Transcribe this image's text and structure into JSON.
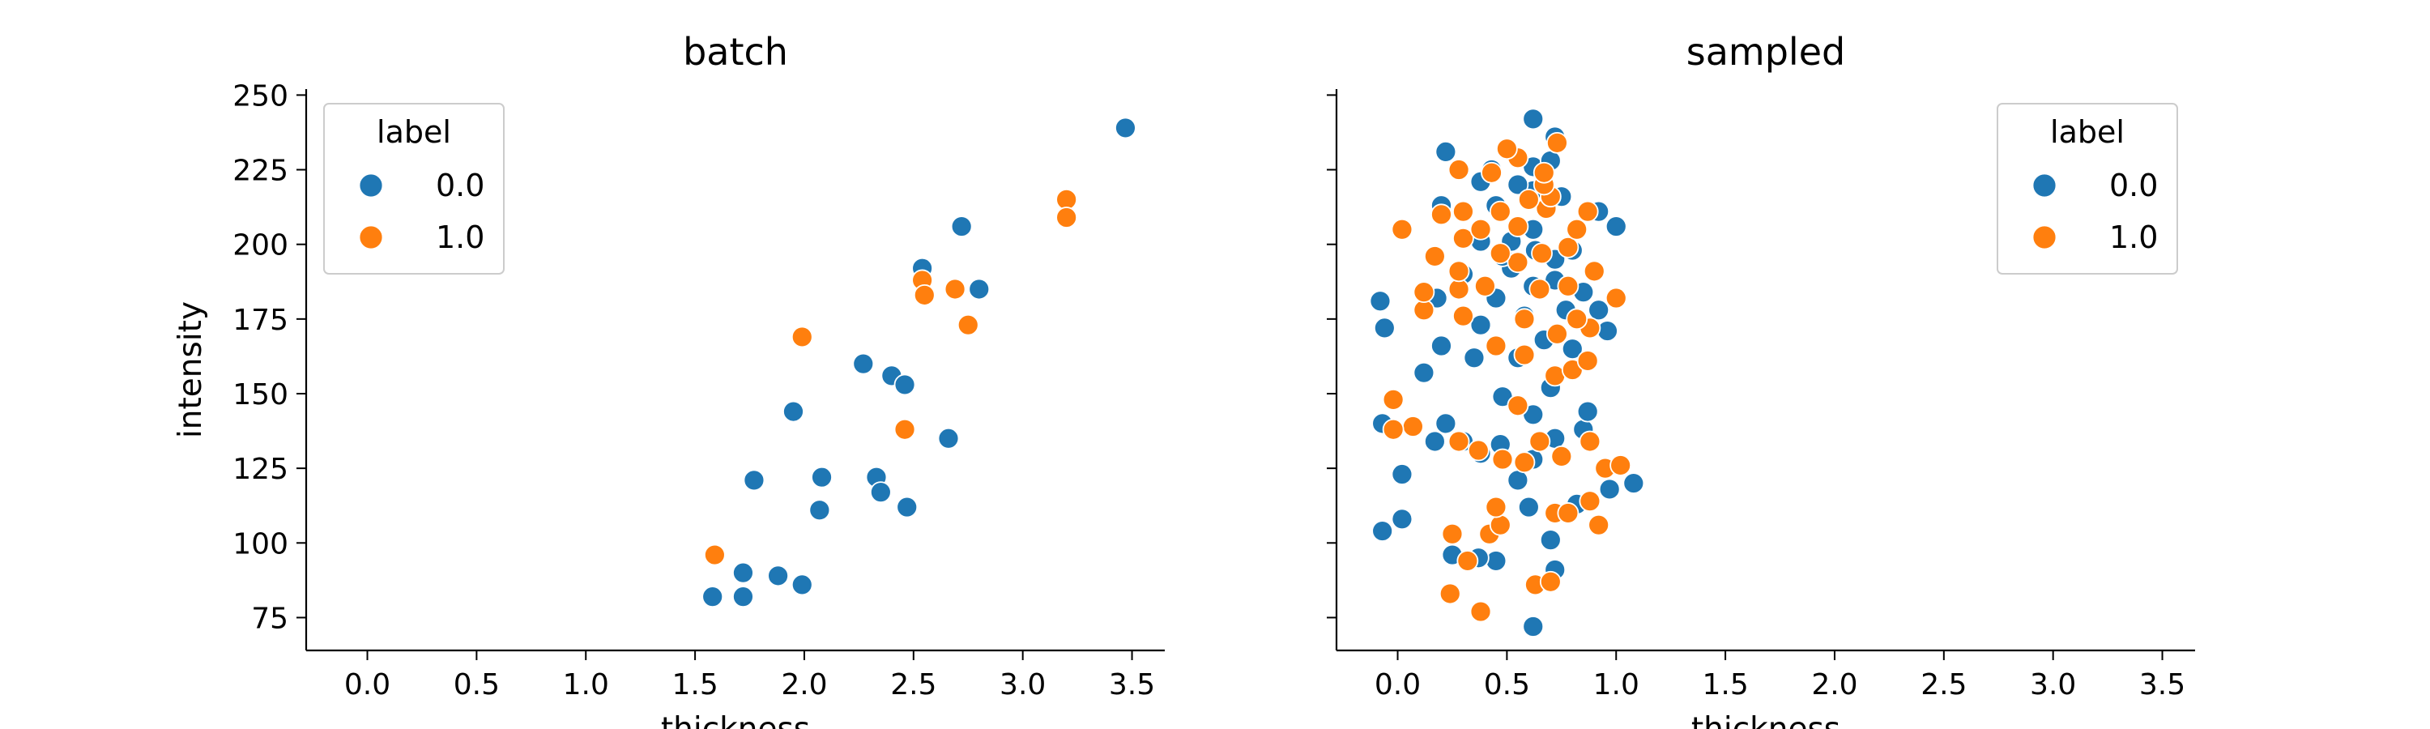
{
  "colors": {
    "label_0": "#1f77b4",
    "label_1": "#ff7f0e"
  },
  "chart_data": [
    {
      "type": "scatter",
      "title": "batch",
      "xlabel": "thickness",
      "ylabel": "intensity",
      "xlim": [
        -0.28,
        3.65
      ],
      "ylim": [
        64,
        252
      ],
      "xticks": [
        "0.0",
        "0.5",
        "1.0",
        "1.5",
        "2.0",
        "2.5",
        "3.0",
        "3.5"
      ],
      "yticks": [
        "75",
        "100",
        "125",
        "150",
        "175",
        "200",
        "225",
        "250"
      ],
      "legend": {
        "title": "label",
        "position": "upper left",
        "entries": [
          "0.0",
          "1.0"
        ]
      },
      "series": [
        {
          "name": "0.0",
          "color": "#1f77b4",
          "points": [
            [
              1.58,
              82
            ],
            [
              1.72,
              82
            ],
            [
              1.72,
              90
            ],
            [
              1.88,
              89
            ],
            [
              1.99,
              86
            ],
            [
              1.77,
              121
            ],
            [
              2.07,
              111
            ],
            [
              2.08,
              122
            ],
            [
              1.95,
              144
            ],
            [
              2.27,
              160
            ],
            [
              2.33,
              122
            ],
            [
              2.35,
              117
            ],
            [
              2.47,
              112
            ],
            [
              2.4,
              156
            ],
            [
              2.46,
              153
            ],
            [
              2.66,
              135
            ],
            [
              2.54,
              192
            ],
            [
              2.72,
              206
            ],
            [
              2.8,
              185
            ],
            [
              3.47,
              239
            ]
          ]
        },
        {
          "name": "1.0",
          "color": "#ff7f0e",
          "points": [
            [
              1.59,
              96
            ],
            [
              1.99,
              169
            ],
            [
              2.46,
              138
            ],
            [
              2.54,
              188
            ],
            [
              2.55,
              183
            ],
            [
              2.69,
              185
            ],
            [
              2.75,
              173
            ],
            [
              3.2,
              215
            ],
            [
              3.2,
              209
            ]
          ]
        }
      ]
    },
    {
      "type": "scatter",
      "title": "sampled",
      "xlabel": "thickness",
      "ylabel": "",
      "xlim": [
        -0.28,
        3.65
      ],
      "ylim": [
        64,
        252
      ],
      "xticks": [
        "0.0",
        "0.5",
        "1.0",
        "1.5",
        "2.0",
        "2.5",
        "3.0",
        "3.5"
      ],
      "yticks": [
        "75",
        "100",
        "125",
        "150",
        "175",
        "200",
        "225",
        "250"
      ],
      "legend": {
        "title": "label",
        "position": "upper right",
        "entries": [
          "0.0",
          "1.0"
        ]
      },
      "series": [
        {
          "name": "0.0",
          "color": "#1f77b4",
          "points": [
            [
              0.62,
              72
            ],
            [
              0.72,
              91
            ],
            [
              0.45,
              94
            ],
            [
              0.37,
              95
            ],
            [
              0.25,
              96
            ],
            [
              0.7,
              101
            ],
            [
              -0.07,
              104
            ],
            [
              0.02,
              108
            ],
            [
              0.6,
              112
            ],
            [
              0.82,
              113
            ],
            [
              0.02,
              123
            ],
            [
              0.97,
              118
            ],
            [
              0.55,
              121
            ],
            [
              1.08,
              120
            ],
            [
              0.62,
              128
            ],
            [
              0.38,
              130
            ],
            [
              0.3,
              134
            ],
            [
              0.47,
              133
            ],
            [
              0.17,
              134
            ],
            [
              0.72,
              135
            ],
            [
              0.85,
              138
            ],
            [
              0.22,
              140
            ],
            [
              -0.07,
              140
            ],
            [
              0.62,
              143
            ],
            [
              0.87,
              144
            ],
            [
              0.48,
              149
            ],
            [
              0.7,
              152
            ],
            [
              0.12,
              157
            ],
            [
              0.35,
              162
            ],
            [
              0.55,
              162
            ],
            [
              0.8,
              165
            ],
            [
              0.67,
              168
            ],
            [
              0.2,
              166
            ],
            [
              0.96,
              171
            ],
            [
              -0.06,
              172
            ],
            [
              0.38,
              173
            ],
            [
              0.58,
              176
            ],
            [
              0.77,
              178
            ],
            [
              0.92,
              178
            ],
            [
              -0.08,
              181
            ],
            [
              0.18,
              182
            ],
            [
              0.45,
              182
            ],
            [
              0.62,
              186
            ],
            [
              0.72,
              188
            ],
            [
              0.85,
              184
            ],
            [
              0.3,
              190
            ],
            [
              0.52,
              192
            ],
            [
              0.72,
              195
            ],
            [
              0.48,
              196
            ],
            [
              0.63,
              198
            ],
            [
              0.8,
              198
            ],
            [
              0.38,
              201
            ],
            [
              0.52,
              201
            ],
            [
              1.0,
              206
            ],
            [
              0.62,
              205
            ],
            [
              0.92,
              211
            ],
            [
              0.2,
              213
            ],
            [
              0.45,
              213
            ],
            [
              0.75,
              216
            ],
            [
              0.62,
              218
            ],
            [
              0.55,
              220
            ],
            [
              0.38,
              221
            ],
            [
              0.43,
              225
            ],
            [
              0.62,
              226
            ],
            [
              0.7,
              228
            ],
            [
              0.22,
              231
            ],
            [
              0.72,
              236
            ],
            [
              0.62,
              242
            ]
          ]
        },
        {
          "name": "1.0",
          "color": "#ff7f0e",
          "points": [
            [
              0.63,
              86
            ],
            [
              0.7,
              87
            ],
            [
              0.24,
              83
            ],
            [
              0.38,
              77
            ],
            [
              0.32,
              94
            ],
            [
              0.42,
              103
            ],
            [
              0.25,
              103
            ],
            [
              0.47,
              106
            ],
            [
              0.92,
              106
            ],
            [
              0.72,
              110
            ],
            [
              0.78,
              110
            ],
            [
              0.45,
              112
            ],
            [
              0.88,
              114
            ],
            [
              0.95,
              125
            ],
            [
              1.02,
              126
            ],
            [
              0.58,
              127
            ],
            [
              0.48,
              128
            ],
            [
              0.75,
              129
            ],
            [
              0.37,
              131
            ],
            [
              0.28,
              134
            ],
            [
              0.65,
              134
            ],
            [
              0.07,
              139
            ],
            [
              -0.02,
              138
            ],
            [
              0.88,
              134
            ],
            [
              -0.02,
              148
            ],
            [
              0.55,
              146
            ],
            [
              0.72,
              156
            ],
            [
              0.8,
              158
            ],
            [
              0.87,
              161
            ],
            [
              0.58,
              163
            ],
            [
              0.45,
              166
            ],
            [
              0.73,
              170
            ],
            [
              0.88,
              172
            ],
            [
              0.3,
              176
            ],
            [
              0.12,
              178
            ],
            [
              0.58,
              175
            ],
            [
              0.82,
              175
            ],
            [
              0.12,
              184
            ],
            [
              0.28,
              185
            ],
            [
              0.4,
              186
            ],
            [
              0.65,
              185
            ],
            [
              0.78,
              186
            ],
            [
              1.0,
              182
            ],
            [
              0.28,
              191
            ],
            [
              0.55,
              194
            ],
            [
              0.9,
              191
            ],
            [
              0.17,
              196
            ],
            [
              0.47,
              197
            ],
            [
              0.66,
              197
            ],
            [
              0.78,
              199
            ],
            [
              0.3,
              202
            ],
            [
              0.38,
              205
            ],
            [
              0.02,
              205
            ],
            [
              0.82,
              205
            ],
            [
              0.55,
              206
            ],
            [
              0.2,
              210
            ],
            [
              0.3,
              211
            ],
            [
              0.47,
              211
            ],
            [
              0.68,
              212
            ],
            [
              0.87,
              211
            ],
            [
              0.6,
              215
            ],
            [
              0.7,
              216
            ],
            [
              0.67,
              220
            ],
            [
              0.43,
              224
            ],
            [
              0.67,
              224
            ],
            [
              0.28,
              225
            ],
            [
              0.55,
              229
            ],
            [
              0.5,
              232
            ],
            [
              0.73,
              234
            ]
          ]
        }
      ]
    }
  ]
}
